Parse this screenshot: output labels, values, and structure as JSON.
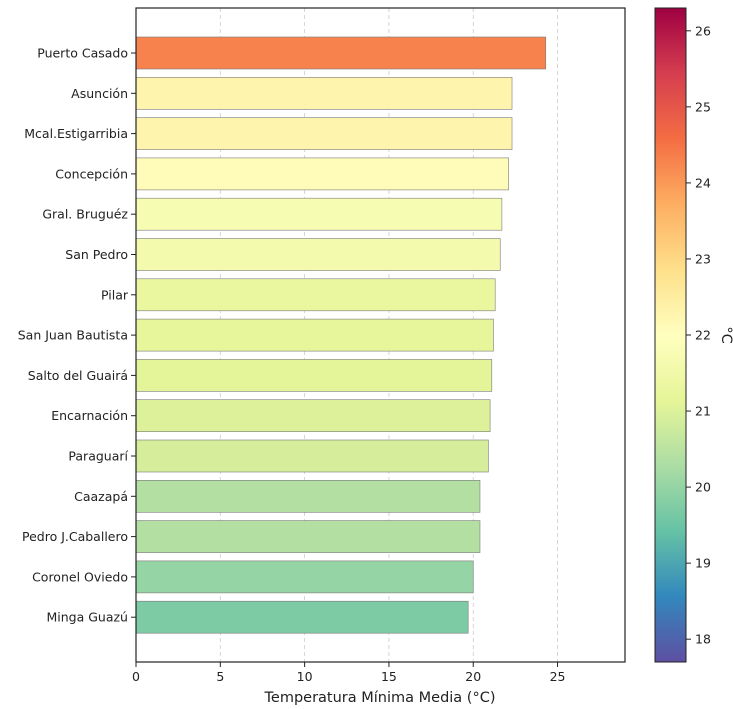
{
  "chart_data": {
    "type": "bar",
    "orientation": "horizontal",
    "categories": [
      "Puerto Casado",
      "Asunción",
      "Mcal.Estigarribia",
      "Concepción",
      "Gral. Bruguéz",
      "San Pedro",
      "Pilar",
      "San Juan Bautista",
      "Salto del Guairá",
      "Encarnación",
      "Paraguarí",
      "Caazapá",
      "Pedro J.Caballero",
      "Coronel Oviedo",
      "Minga Guazú"
    ],
    "values": [
      24.3,
      22.3,
      22.3,
      22.1,
      21.7,
      21.6,
      21.3,
      21.2,
      21.1,
      21.0,
      20.9,
      20.4,
      20.4,
      20.0,
      19.7
    ],
    "xlabel": "Temperatura Mínima Media (°C)",
    "ylabel": "",
    "xlim": [
      0,
      29
    ],
    "xticks": [
      "0",
      "5",
      "10",
      "15",
      "20",
      "25"
    ],
    "grid": "x-dashed",
    "colormap": "Spectral_r",
    "colorbar": {
      "label": "°C",
      "range": [
        17.7,
        26.3
      ],
      "ticks": [
        "18",
        "19",
        "20",
        "21",
        "22",
        "23",
        "24",
        "25",
        "26"
      ]
    }
  }
}
